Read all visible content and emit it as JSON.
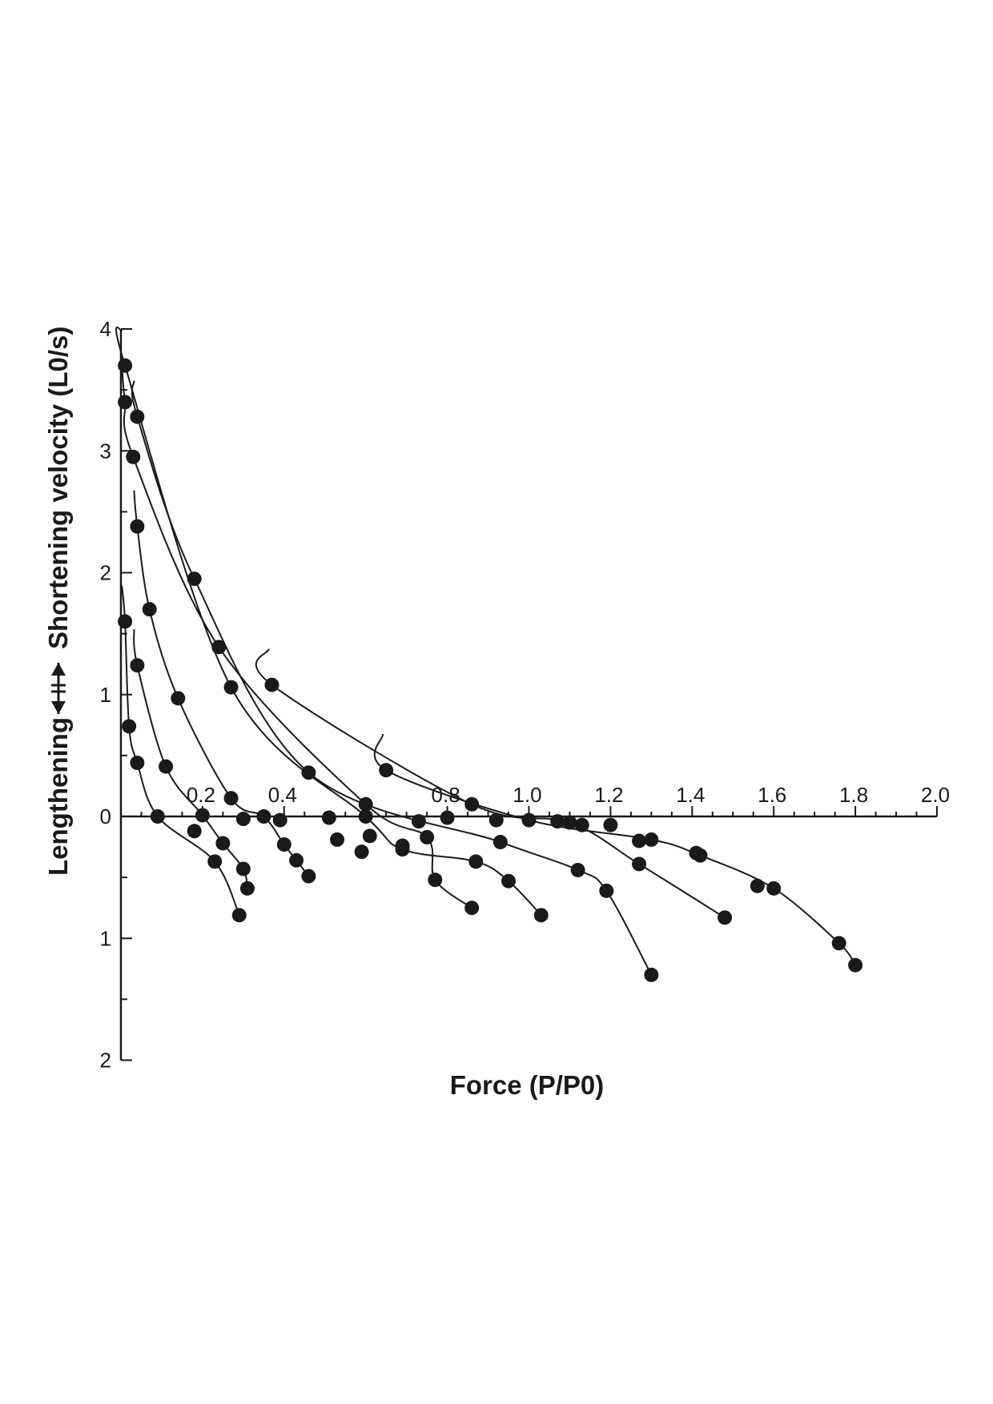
{
  "chart_data": {
    "type": "line",
    "title": "",
    "xlabel": "Force (P/P0)",
    "ylabel_top": "Shortening velocity (L0/s)",
    "ylabel_bottom": "Lengthening",
    "xlim": [
      0,
      2.0
    ],
    "ylim": [
      -2,
      4
    ],
    "x_ticks": [
      {
        "value": 0.2,
        "label": "0.2"
      },
      {
        "value": 0.4,
        "label": "0.4"
      },
      {
        "value": 0.8,
        "label": "0.8"
      },
      {
        "value": 1.0,
        "label": "1.0"
      },
      {
        "value": 1.2,
        "label": "1.2"
      },
      {
        "value": 1.4,
        "label": "1.4"
      },
      {
        "value": 1.6,
        "label": "1.6"
      },
      {
        "value": 1.8,
        "label": "1.8"
      },
      {
        "value": 2.0,
        "label": "2.0"
      }
    ],
    "y_ticks": [
      {
        "value": 4,
        "label": "4"
      },
      {
        "value": 3,
        "label": "3"
      },
      {
        "value": 2,
        "label": "2"
      },
      {
        "value": 1,
        "label": "1"
      },
      {
        "value": 0,
        "label": "0"
      },
      {
        "value": -1,
        "label": "1"
      },
      {
        "value": -2,
        "label": "2"
      }
    ],
    "grid": false,
    "legend": false,
    "series": [
      {
        "points": [
          [
            0.01,
            1.6
          ],
          [
            0.02,
            0.74
          ],
          [
            0.04,
            0.44
          ],
          [
            0.09,
            0.0
          ],
          [
            0.23,
            -0.37
          ],
          [
            0.29,
            -0.81
          ]
        ]
      },
      {
        "points": [
          [
            0.04,
            1.24
          ],
          [
            0.11,
            0.41
          ],
          [
            0.2,
            0.01
          ],
          [
            0.25,
            -0.22
          ],
          [
            0.3,
            -0.43
          ],
          [
            0.31,
            -0.59
          ]
        ]
      },
      {
        "points": [
          [
            0.04,
            2.38
          ],
          [
            0.07,
            1.7
          ],
          [
            0.14,
            0.97
          ],
          [
            0.27,
            0.15
          ],
          [
            0.35,
            0.0
          ],
          [
            0.4,
            -0.23
          ],
          [
            0.43,
            -0.36
          ],
          [
            0.46,
            -0.49
          ]
        ]
      },
      {
        "points": [
          [
            0.01,
            3.4
          ],
          [
            0.03,
            2.95
          ],
          [
            0.24,
            1.39
          ],
          [
            0.6,
            0.1
          ],
          [
            0.75,
            -0.17
          ],
          [
            0.77,
            -0.52
          ],
          [
            0.86,
            -0.75
          ]
        ]
      },
      {
        "points": [
          [
            0.01,
            3.7
          ],
          [
            0.27,
            1.06
          ],
          [
            0.6,
            0.0
          ],
          [
            0.69,
            -0.27
          ],
          [
            0.87,
            -0.37
          ],
          [
            0.95,
            -0.53
          ],
          [
            1.03,
            -0.81
          ]
        ]
      },
      {
        "points": [
          [
            0.04,
            3.28
          ],
          [
            0.18,
            1.95
          ],
          [
            0.46,
            0.36
          ],
          [
            0.93,
            -0.21
          ],
          [
            1.12,
            -0.44
          ],
          [
            1.19,
            -0.61
          ],
          [
            1.3,
            -1.3
          ]
        ]
      },
      {
        "points": [
          [
            0.37,
            1.08
          ],
          [
            0.86,
            0.1
          ],
          [
            1.1,
            -0.05
          ],
          [
            1.27,
            -0.39
          ],
          [
            1.48,
            -0.83
          ]
        ]
      },
      {
        "points": [
          [
            0.65,
            0.38
          ],
          [
            1.0,
            -0.03
          ],
          [
            1.3,
            -0.19
          ],
          [
            1.42,
            -0.32
          ],
          [
            1.6,
            -0.59
          ],
          [
            1.76,
            -1.04
          ],
          [
            1.8,
            -1.22
          ]
        ]
      }
    ],
    "extra_points": [
      [
        0.18,
        -0.12
      ],
      [
        0.3,
        -0.02
      ],
      [
        0.39,
        -0.03
      ],
      [
        0.51,
        -0.01
      ],
      [
        0.53,
        -0.19
      ],
      [
        0.59,
        -0.29
      ],
      [
        0.61,
        -0.16
      ],
      [
        0.69,
        -0.24
      ],
      [
        0.73,
        -0.04
      ],
      [
        0.8,
        -0.01
      ],
      [
        0.92,
        -0.03
      ],
      [
        1.07,
        -0.04
      ],
      [
        1.13,
        -0.07
      ],
      [
        1.2,
        -0.07
      ],
      [
        1.27,
        -0.2
      ],
      [
        1.56,
        -0.57
      ],
      [
        1.41,
        -0.3
      ]
    ]
  }
}
